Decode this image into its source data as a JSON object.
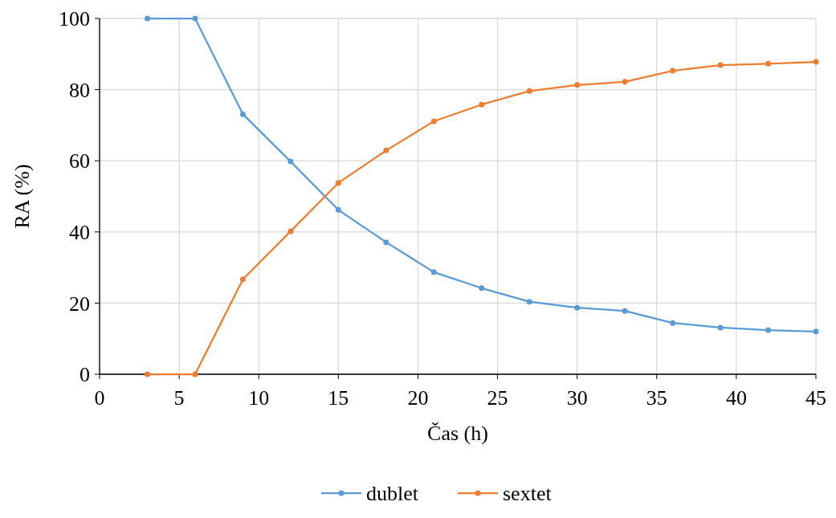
{
  "chart_data": {
    "type": "line",
    "xlabel": "Čas (h)",
    "ylabel": "RA (%)",
    "x": [
      3,
      6,
      9,
      12,
      15,
      18,
      21,
      24,
      27,
      30,
      33,
      36,
      39,
      42,
      45
    ],
    "series": [
      {
        "name": "dublet",
        "color": "#5b9bd5",
        "values": [
          100,
          100,
          73.1,
          59.8,
          46.2,
          37.1,
          28.7,
          24.2,
          20.4,
          18.7,
          17.8,
          14.4,
          13.1,
          12.4,
          12.0
        ]
      },
      {
        "name": "sextet",
        "color": "#ed7d31",
        "values": [
          0,
          0,
          26.7,
          40.2,
          53.8,
          62.9,
          71.1,
          75.8,
          79.6,
          81.3,
          82.2,
          85.3,
          86.9,
          87.3,
          87.8
        ]
      }
    ],
    "xlim": [
      0,
      45
    ],
    "xticks": [
      0,
      5,
      10,
      15,
      20,
      25,
      30,
      35,
      40,
      45
    ],
    "ylim": [
      0,
      100
    ],
    "yticks": [
      0,
      20,
      40,
      60,
      80,
      100
    ],
    "grid": true,
    "legend": "bottom",
    "marker": "circle",
    "line_style": "solid"
  }
}
